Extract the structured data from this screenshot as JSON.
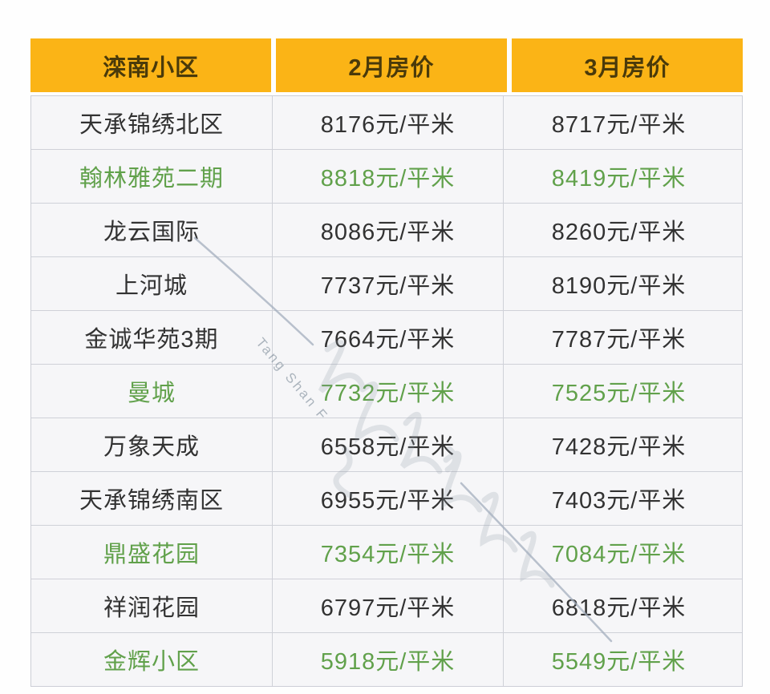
{
  "chart_data": {
    "type": "table",
    "columns": [
      "滦南小区",
      "2月房价",
      "3月房价"
    ],
    "rows": [
      {
        "name": "天承锦绣北区",
        "feb": "8176元/平米",
        "mar": "8717元/平米",
        "highlight": false
      },
      {
        "name": "翰林雅苑二期",
        "feb": "8818元/平米",
        "mar": "8419元/平米",
        "highlight": true
      },
      {
        "name": "龙云国际",
        "feb": "8086元/平米",
        "mar": "8260元/平米",
        "highlight": false
      },
      {
        "name": "上河城",
        "feb": "7737元/平米",
        "mar": "8190元/平米",
        "highlight": false
      },
      {
        "name": "金诚华苑3期",
        "feb": "7664元/平米",
        "mar": "7787元/平米",
        "highlight": false
      },
      {
        "name": "曼城",
        "feb": "7732元/平米",
        "mar": "7525元/平米",
        "highlight": true
      },
      {
        "name": "万象天成",
        "feb": "6558元/平米",
        "mar": "7428元/平米",
        "highlight": false
      },
      {
        "name": "天承锦绣南区",
        "feb": "6955元/平米",
        "mar": "7403元/平米",
        "highlight": false
      },
      {
        "name": "鼎盛花园",
        "feb": "7354元/平米",
        "mar": "7084元/平米",
        "highlight": true
      },
      {
        "name": "祥润花园",
        "feb": "6797元/平米",
        "mar": "6818元/平米",
        "highlight": false
      },
      {
        "name": "金辉小区",
        "feb": "5918元/平米",
        "mar": "5549元/平米",
        "highlight": true
      }
    ],
    "layout": {
      "grid": "on",
      "header_position": "top",
      "highlight_meaning": "rows rendered in green text"
    }
  },
  "watermark": {
    "text_en": "Tang Shan F"
  },
  "colors": {
    "header_bg": "#fbb416",
    "header_text": "#4a3a0a",
    "body_bg": "#f6f6f8",
    "body_text": "#323232",
    "highlight_green": "#61a14b",
    "grid_line": "#cfd1d8",
    "watermark_gray": "#8d99a6"
  }
}
